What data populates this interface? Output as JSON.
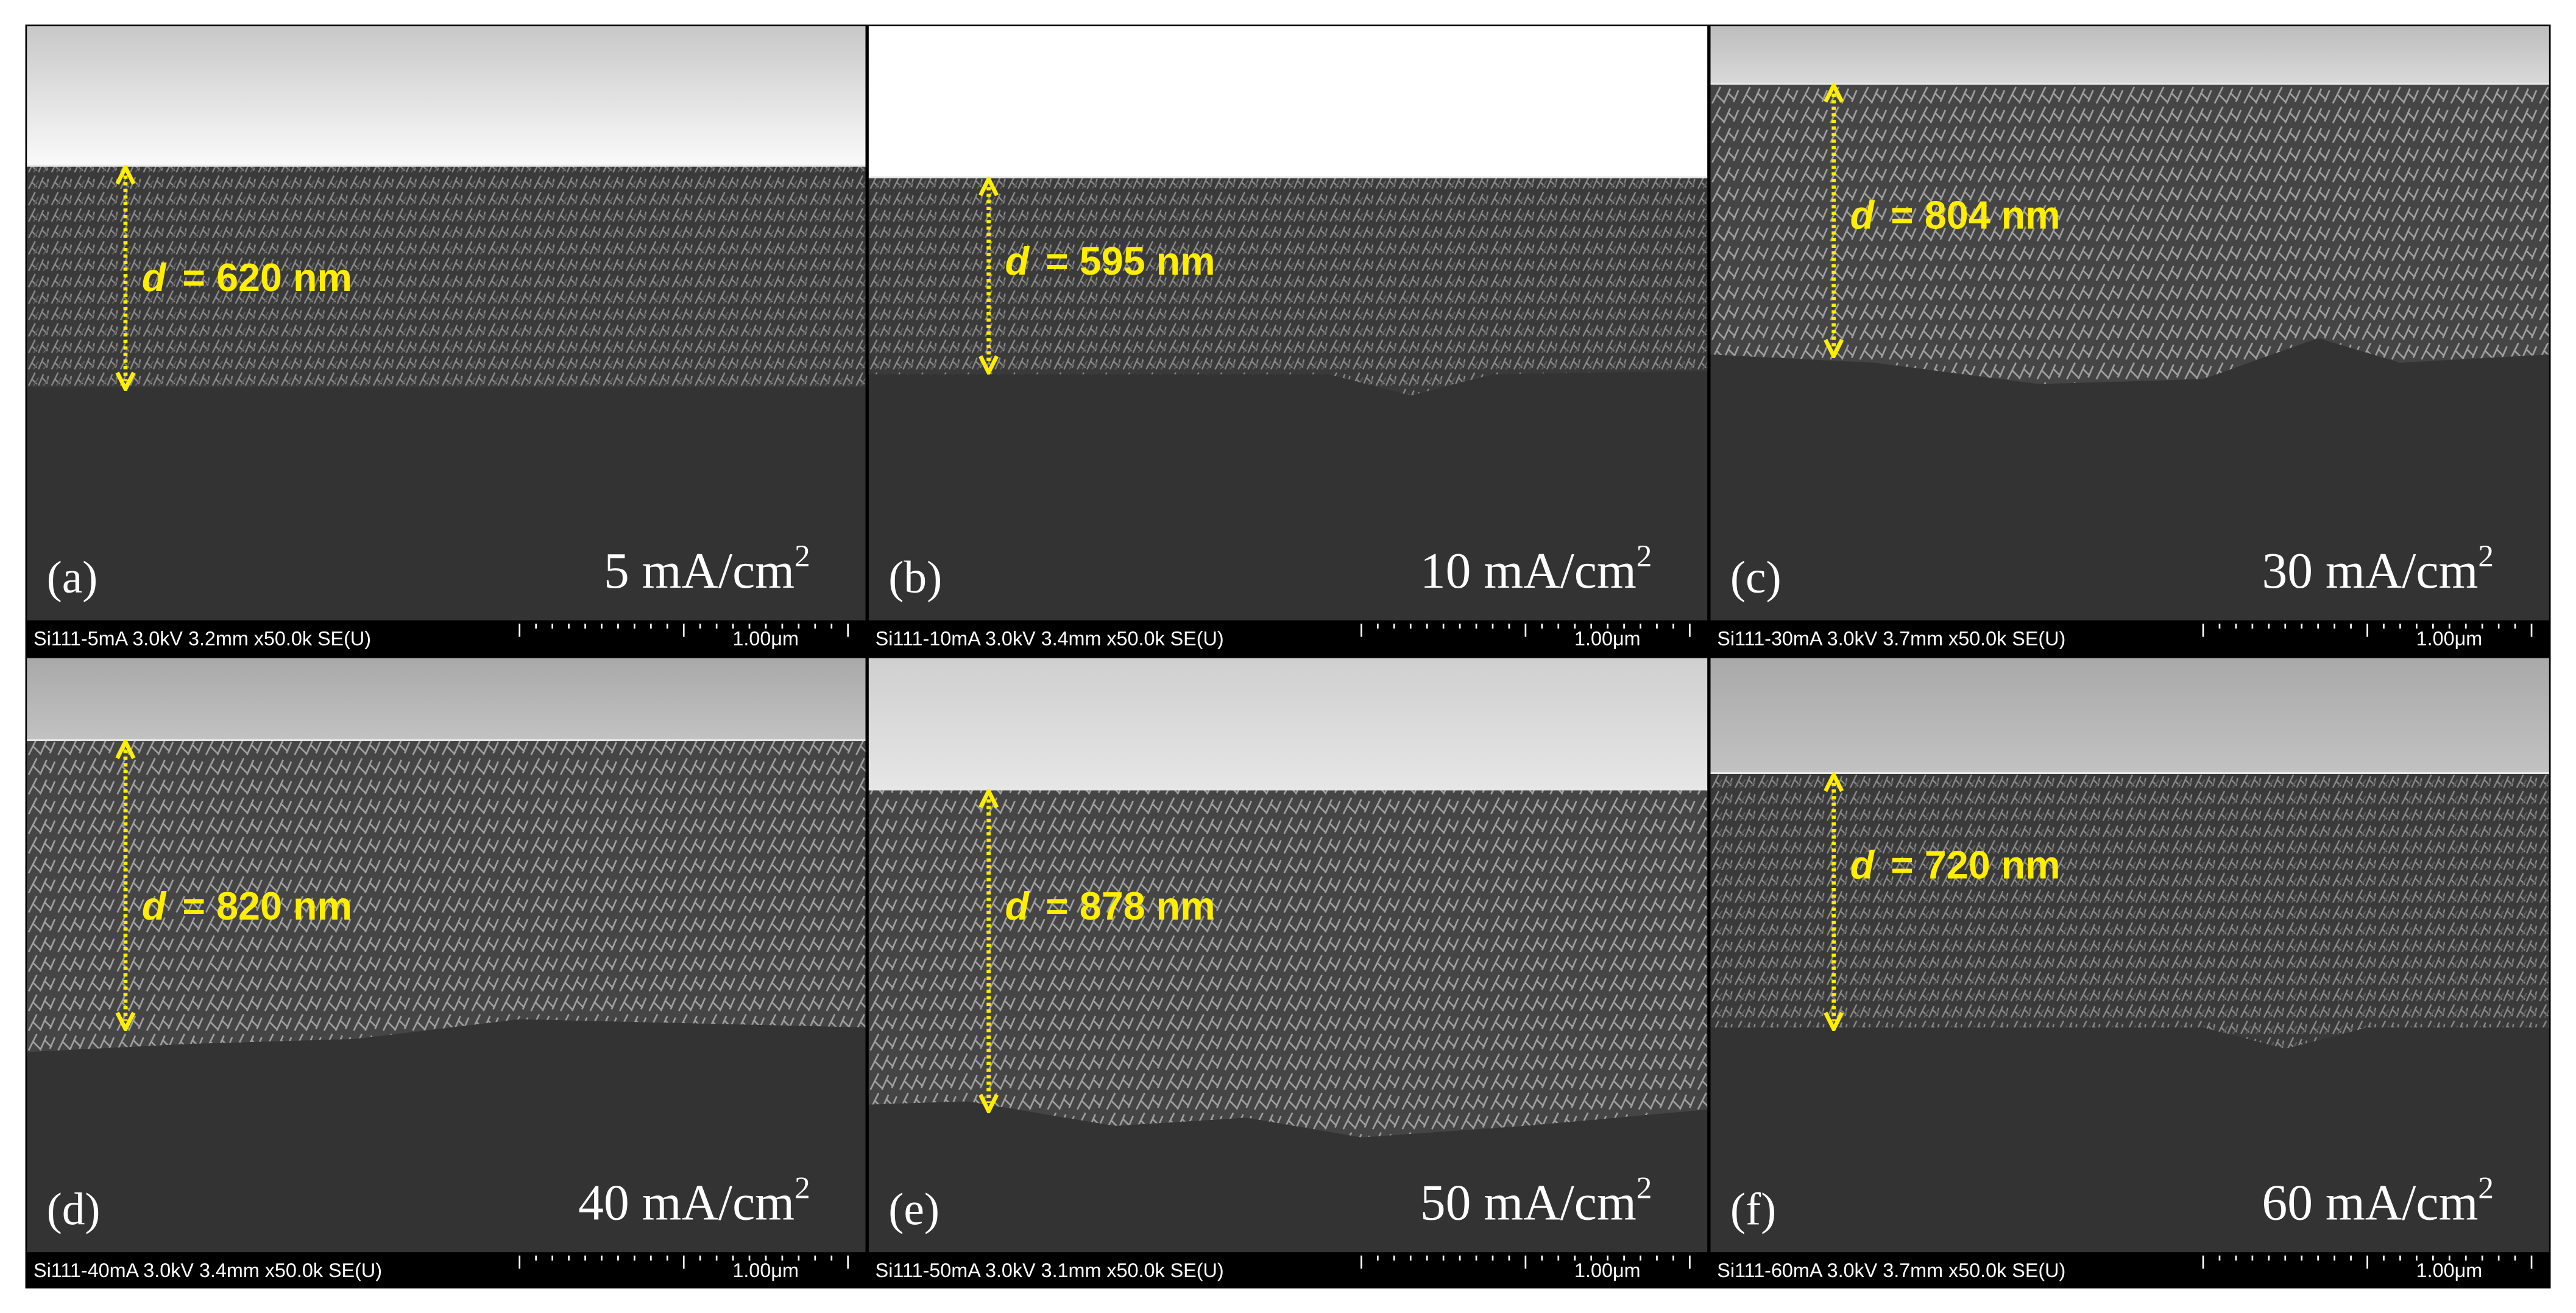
{
  "panels": [
    {
      "label": "(a)",
      "current": "5 mA/cm",
      "current_exponent": "2",
      "d_symbol": "d",
      "d_value": "= 620 nm",
      "info": "Si111-5mA 3.0kV 3.2mm x50.0k SE(U)",
      "scale": "1.00μm"
    },
    {
      "label": "(b)",
      "current": "10 mA/cm",
      "current_exponent": "2",
      "d_symbol": "d",
      "d_value": "= 595 nm",
      "info": "Si111-10mA 3.0kV 3.4mm x50.0k SE(U)",
      "scale": "1.00μm"
    },
    {
      "label": "(c)",
      "current": "30 mA/cm",
      "current_exponent": "2",
      "d_symbol": "d",
      "d_value": "= 804 nm",
      "info": "Si111-30mA 3.0kV 3.7mm x50.0k SE(U)",
      "scale": "1.00μm"
    },
    {
      "label": "(d)",
      "current": "40 mA/cm",
      "current_exponent": "2",
      "d_symbol": "d",
      "d_value": "= 820 nm",
      "info": "Si111-40mA 3.0kV 3.4mm x50.0k SE(U)",
      "scale": "1.00μm"
    },
    {
      "label": "(e)",
      "current": "50 mA/cm",
      "current_exponent": "2",
      "d_symbol": "d",
      "d_value": "= 878 nm",
      "info": "Si111-50mA 3.0kV 3.1mm x50.0k SE(U)",
      "scale": "1.00μm"
    },
    {
      "label": "(f)",
      "current": "60 mA/cm",
      "current_exponent": "2",
      "d_symbol": "d",
      "d_value": "= 720 nm",
      "info": "Si111-60mA 3.0kV 3.7mm x50.0k SE(U)",
      "scale": "1.00μm"
    }
  ]
}
